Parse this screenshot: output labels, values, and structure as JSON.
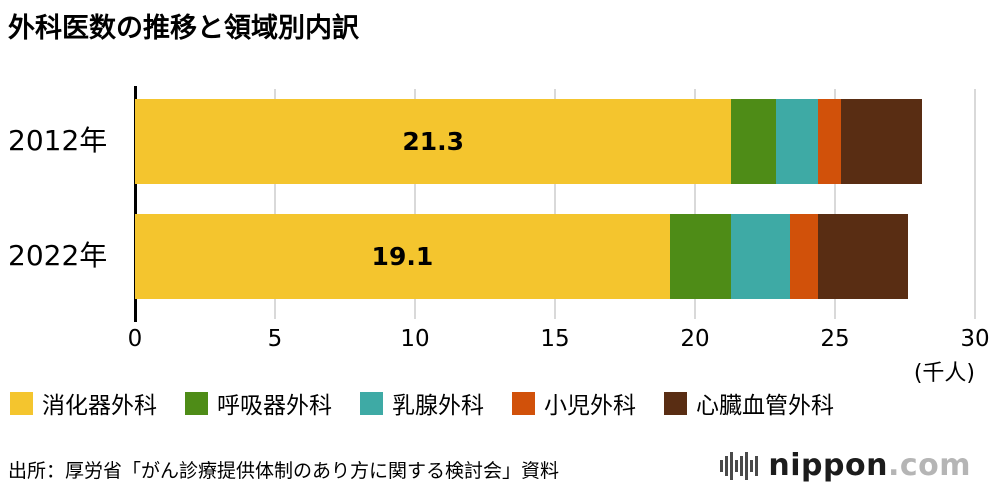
{
  "title": "外科医数の推移と領域別内訳",
  "axis_unit": "(千人)",
  "source": "出所：厚労省「がん診療提供体制のあり方に関する検討会」資料",
  "logo": {
    "name": "nippon",
    "tld": ".com"
  },
  "chart_data": {
    "type": "bar",
    "orientation": "horizontal",
    "stacked": true,
    "title": "外科医数の推移と領域別内訳",
    "categories": [
      "2012年",
      "2022年"
    ],
    "series": [
      {
        "name": "消化器外科",
        "color": "#F4C52E",
        "values": [
          21.3,
          19.1
        ]
      },
      {
        "name": "呼吸器外科",
        "color": "#4E8C17",
        "values": [
          1.6,
          2.2
        ]
      },
      {
        "name": "乳腺外科",
        "color": "#3EAAA5",
        "values": [
          1.5,
          2.1
        ]
      },
      {
        "name": "小児外科",
        "color": "#D1510A",
        "values": [
          0.8,
          1.0
        ]
      },
      {
        "name": "心臓血管外科",
        "color": "#592D13",
        "values": [
          2.9,
          3.2
        ]
      }
    ],
    "bar_labels": [
      "21.3",
      "19.1"
    ],
    "xlabel": "(千人)",
    "xlim": [
      0,
      30
    ],
    "xticks": [
      0,
      5,
      10,
      15,
      20,
      25,
      30
    ],
    "grid": true,
    "legend_position": "bottom"
  }
}
